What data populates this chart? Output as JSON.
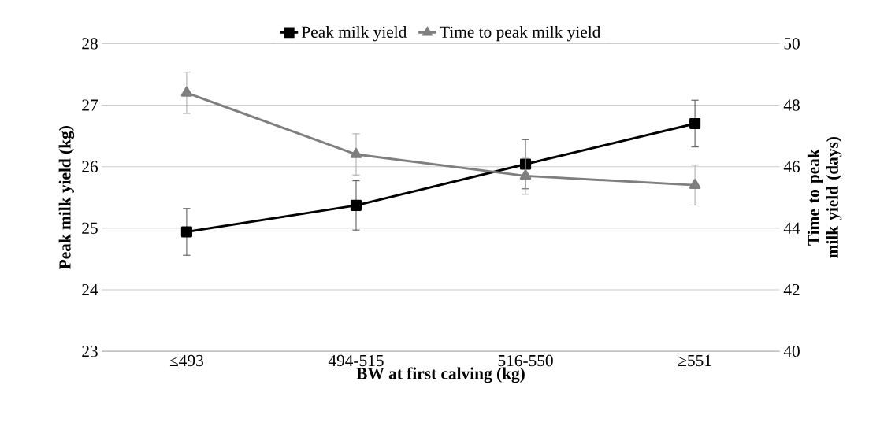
{
  "chart_data": {
    "type": "line",
    "xlabel": "BW at first calving (kg)",
    "ylabel": "Peak milk yield (kg)",
    "y2label": "Time to peak milk yield (days)",
    "categories": [
      "≤493",
      "494-515",
      "516-550",
      "≥551"
    ],
    "series": [
      {
        "name": "Peak milk yield",
        "color": "#000000",
        "marker": "square",
        "values": [
          24.94,
          25.37,
          26.04,
          26.7
        ],
        "errors": [
          0.38,
          0.4,
          0.4,
          0.38
        ]
      },
      {
        "name": "Time to peak milk yield",
        "color": "#7f7f7f",
        "marker": "triangle",
        "axis": "y2",
        "values": [
          48.4,
          46.4,
          45.7,
          45.4
        ],
        "errors": [
          0.67,
          0.67,
          0.6,
          0.65
        ]
      }
    ],
    "ylim": [
      23,
      28
    ],
    "yticks": [
      23,
      24,
      25,
      26,
      27,
      28
    ],
    "y2lim": [
      40,
      50
    ],
    "y2ticks": [
      40,
      42,
      44,
      46,
      48,
      50
    ],
    "grid": "y",
    "legend": "top",
    "line_style": "solid"
  }
}
